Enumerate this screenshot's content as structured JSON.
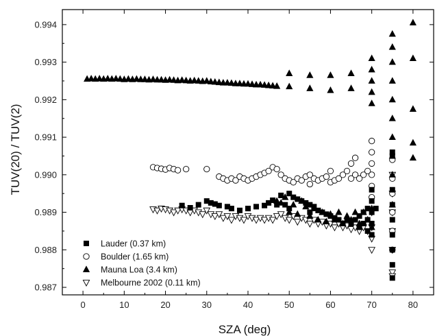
{
  "chart_data": {
    "type": "scatter",
    "title": "",
    "xlabel": "SZA (deg)",
    "ylabel": "TUV(20) / TUV(2)",
    "xlim": [
      -5,
      85
    ],
    "ylim": [
      0.9868,
      0.9944
    ],
    "xticks": [
      0,
      10,
      20,
      30,
      40,
      50,
      60,
      70,
      80
    ],
    "yticks": [
      0.987,
      0.988,
      0.989,
      0.99,
      0.991,
      0.992,
      0.993,
      0.994
    ],
    "ytick_labels": [
      "0.987",
      "0.988",
      "0.989",
      "0.990",
      "0.991",
      "0.992",
      "0.993",
      "0.994"
    ],
    "grid": false,
    "legend_position": "bottom-left",
    "series": [
      {
        "name": "Lauder (0.37 km)",
        "marker": "filled-square",
        "points": [
          [
            24,
            0.98918
          ],
          [
            26,
            0.98912
          ],
          [
            28,
            0.9892
          ],
          [
            30,
            0.9893
          ],
          [
            31,
            0.98925
          ],
          [
            32,
            0.98922
          ],
          [
            33,
            0.98918
          ],
          [
            35,
            0.98915
          ],
          [
            36,
            0.9891
          ],
          [
            38,
            0.98905
          ],
          [
            40,
            0.9891
          ],
          [
            42,
            0.98915
          ],
          [
            44,
            0.98918
          ],
          [
            45,
            0.98925
          ],
          [
            46,
            0.98932
          ],
          [
            47,
            0.9892
          ],
          [
            48,
            0.98945
          ],
          [
            49,
            0.9892
          ],
          [
            50,
            0.9895
          ],
          [
            50,
            0.9891
          ],
          [
            51,
            0.9894
          ],
          [
            52,
            0.98935
          ],
          [
            53,
            0.9893
          ],
          [
            54,
            0.98925
          ],
          [
            55,
            0.9892
          ],
          [
            55,
            0.989
          ],
          [
            56,
            0.98915
          ],
          [
            57,
            0.98905
          ],
          [
            58,
            0.989
          ],
          [
            59,
            0.98895
          ],
          [
            60,
            0.9889
          ],
          [
            61,
            0.98885
          ],
          [
            62,
            0.9888
          ],
          [
            63,
            0.9887
          ],
          [
            64,
            0.9888
          ],
          [
            65,
            0.9887
          ],
          [
            66,
            0.9888
          ],
          [
            67,
            0.9889
          ],
          [
            67,
            0.9886
          ],
          [
            68,
            0.989
          ],
          [
            68,
            0.9887
          ],
          [
            69,
            0.9891
          ],
          [
            69,
            0.9888
          ],
          [
            69,
            0.9885
          ],
          [
            70,
            0.9896
          ],
          [
            70,
            0.9893
          ],
          [
            70,
            0.989
          ],
          [
            70,
            0.9887
          ],
          [
            70,
            0.9884
          ],
          [
            71,
            0.9891
          ],
          [
            75,
            0.9888
          ],
          [
            75,
            0.9884
          ],
          [
            75,
            0.988
          ],
          [
            75,
            0.9876
          ],
          [
            75,
            0.98725
          ],
          [
            75,
            0.9892
          ],
          [
            75,
            0.9896
          ],
          [
            75,
            0.9905
          ],
          [
            75,
            0.9906
          ]
        ]
      },
      {
        "name": "Boulder (1.65 km)",
        "marker": "open-circle",
        "points": [
          [
            17,
            0.9902
          ],
          [
            18,
            0.99018
          ],
          [
            19,
            0.99016
          ],
          [
            20,
            0.99014
          ],
          [
            21,
            0.99018
          ],
          [
            22,
            0.99015
          ],
          [
            23,
            0.99012
          ],
          [
            25,
            0.99015
          ],
          [
            30,
            0.99015
          ],
          [
            33,
            0.98995
          ],
          [
            34,
            0.9899
          ],
          [
            35,
            0.98985
          ],
          [
            36,
            0.9899
          ],
          [
            37,
            0.98985
          ],
          [
            38,
            0.98995
          ],
          [
            39,
            0.9899
          ],
          [
            40,
            0.98985
          ],
          [
            41,
            0.9899
          ],
          [
            42,
            0.98995
          ],
          [
            43,
            0.99
          ],
          [
            44,
            0.99005
          ],
          [
            45,
            0.9901
          ],
          [
            46,
            0.9902
          ],
          [
            47,
            0.99015
          ],
          [
            48,
            0.99
          ],
          [
            49,
            0.9899
          ],
          [
            50,
            0.98985
          ],
          [
            51,
            0.9898
          ],
          [
            52,
            0.9899
          ],
          [
            53,
            0.98985
          ],
          [
            54,
            0.98995
          ],
          [
            55,
            0.99
          ],
          [
            55,
            0.98975
          ],
          [
            56,
            0.9899
          ],
          [
            57,
            0.98985
          ],
          [
            58,
            0.9899
          ],
          [
            59,
            0.98995
          ],
          [
            60,
            0.9901
          ],
          [
            60,
            0.9898
          ],
          [
            61,
            0.98985
          ],
          [
            62,
            0.9899
          ],
          [
            63,
            0.99
          ],
          [
            64,
            0.9901
          ],
          [
            65,
            0.9903
          ],
          [
            65,
            0.9899
          ],
          [
            66,
            0.99045
          ],
          [
            66,
            0.99
          ],
          [
            67,
            0.9899
          ],
          [
            68,
            0.99
          ],
          [
            69,
            0.9901
          ],
          [
            70,
            0.9909
          ],
          [
            70,
            0.9906
          ],
          [
            70,
            0.9903
          ],
          [
            70,
            0.99
          ],
          [
            70,
            0.9897
          ],
          [
            70,
            0.9894
          ],
          [
            75,
            0.9904
          ],
          [
            75,
            0.9899
          ],
          [
            75,
            0.9895
          ],
          [
            75,
            0.989
          ],
          [
            75,
            0.9885
          ],
          [
            75,
            0.988
          ]
        ]
      },
      {
        "name": "Mauna Loa (3.4 km)",
        "marker": "filled-triangle-up",
        "points": [
          [
            1,
            0.99255
          ],
          [
            2,
            0.99256
          ],
          [
            3,
            0.99255
          ],
          [
            4,
            0.99256
          ],
          [
            5,
            0.99255
          ],
          [
            6,
            0.99256
          ],
          [
            7,
            0.99255
          ],
          [
            8,
            0.99256
          ],
          [
            9,
            0.99255
          ],
          [
            10,
            0.99254
          ],
          [
            11,
            0.99255
          ],
          [
            12,
            0.99254
          ],
          [
            13,
            0.99255
          ],
          [
            14,
            0.99254
          ],
          [
            15,
            0.99254
          ],
          [
            16,
            0.99253
          ],
          [
            17,
            0.99254
          ],
          [
            18,
            0.99253
          ],
          [
            19,
            0.99253
          ],
          [
            20,
            0.99252
          ],
          [
            21,
            0.99253
          ],
          [
            22,
            0.99252
          ],
          [
            23,
            0.99251
          ],
          [
            24,
            0.99252
          ],
          [
            25,
            0.99251
          ],
          [
            26,
            0.9925
          ],
          [
            27,
            0.99251
          ],
          [
            28,
            0.9925
          ],
          [
            29,
            0.99249
          ],
          [
            30,
            0.9925
          ],
          [
            31,
            0.99248
          ],
          [
            32,
            0.99247
          ],
          [
            33,
            0.99246
          ],
          [
            34,
            0.99245
          ],
          [
            35,
            0.99245
          ],
          [
            36,
            0.99244
          ],
          [
            37,
            0.99243
          ],
          [
            38,
            0.99243
          ],
          [
            39,
            0.99242
          ],
          [
            40,
            0.99242
          ],
          [
            41,
            0.99241
          ],
          [
            42,
            0.9924
          ],
          [
            43,
            0.9924
          ],
          [
            44,
            0.99239
          ],
          [
            45,
            0.99238
          ],
          [
            46,
            0.99237
          ],
          [
            47,
            0.99236
          ],
          [
            50,
            0.9927
          ],
          [
            50,
            0.99235
          ],
          [
            55,
            0.99265
          ],
          [
            55,
            0.9923
          ],
          [
            60,
            0.99265
          ],
          [
            60,
            0.99225
          ],
          [
            65,
            0.9927
          ],
          [
            65,
            0.9923
          ],
          [
            70,
            0.9931
          ],
          [
            70,
            0.9928
          ],
          [
            70,
            0.9925
          ],
          [
            70,
            0.9922
          ],
          [
            70,
            0.9919
          ],
          [
            75,
            0.99375
          ],
          [
            75,
            0.9934
          ],
          [
            75,
            0.993
          ],
          [
            75,
            0.9925
          ],
          [
            75,
            0.992
          ],
          [
            75,
            0.9915
          ],
          [
            75,
            0.991
          ],
          [
            75,
            0.9905
          ],
          [
            75,
            0.99
          ],
          [
            80,
            0.99405
          ],
          [
            80,
            0.9931
          ],
          [
            80,
            0.99175
          ],
          [
            80,
            0.99085
          ],
          [
            80,
            0.99045
          ],
          [
            47,
            0.9893
          ],
          [
            48,
            0.98925
          ],
          [
            49,
            0.9894
          ],
          [
            50,
            0.989
          ],
          [
            51,
            0.9892
          ],
          [
            52,
            0.98895
          ],
          [
            53,
            0.9893
          ],
          [
            54,
            0.98915
          ],
          [
            55,
            0.9889
          ],
          [
            56,
            0.9891
          ],
          [
            57,
            0.9888
          ],
          [
            58,
            0.989
          ],
          [
            59,
            0.98875
          ],
          [
            60,
            0.98895
          ],
          [
            61,
            0.9888
          ],
          [
            62,
            0.989
          ],
          [
            63,
            0.9887
          ],
          [
            64,
            0.9889
          ],
          [
            65,
            0.9888
          ],
          [
            66,
            0.989
          ],
          [
            67,
            0.9887
          ],
          [
            68,
            0.989
          ],
          [
            69,
            0.9888
          ],
          [
            70,
            0.9891
          ],
          [
            70,
            0.9886
          ],
          [
            75,
            0.9892
          ]
        ]
      },
      {
        "name": "Melbourne 2002 (0.11 km)",
        "marker": "open-triangle-down",
        "points": [
          [
            17,
            0.98908
          ],
          [
            18,
            0.98905
          ],
          [
            19,
            0.9891
          ],
          [
            20,
            0.98908
          ],
          [
            21,
            0.98905
          ],
          [
            22,
            0.989
          ],
          [
            23,
            0.98905
          ],
          [
            24,
            0.98908
          ],
          [
            25,
            0.98905
          ],
          [
            26,
            0.989
          ],
          [
            27,
            0.98905
          ],
          [
            28,
            0.989
          ],
          [
            29,
            0.98895
          ],
          [
            30,
            0.98905
          ],
          [
            31,
            0.98895
          ],
          [
            32,
            0.9889
          ],
          [
            33,
            0.98895
          ],
          [
            34,
            0.98885
          ],
          [
            35,
            0.9889
          ],
          [
            36,
            0.9888
          ],
          [
            37,
            0.9889
          ],
          [
            38,
            0.98885
          ],
          [
            39,
            0.9888
          ],
          [
            40,
            0.9889
          ],
          [
            41,
            0.98885
          ],
          [
            42,
            0.9888
          ],
          [
            43,
            0.98885
          ],
          [
            44,
            0.9888
          ],
          [
            45,
            0.98885
          ],
          [
            46,
            0.9888
          ],
          [
            47,
            0.9889
          ],
          [
            48,
            0.98895
          ],
          [
            49,
            0.98885
          ],
          [
            50,
            0.9888
          ],
          [
            51,
            0.9889
          ],
          [
            52,
            0.98875
          ],
          [
            53,
            0.98885
          ],
          [
            54,
            0.9888
          ],
          [
            55,
            0.9887
          ],
          [
            56,
            0.9888
          ],
          [
            57,
            0.9887
          ],
          [
            58,
            0.98875
          ],
          [
            59,
            0.98865
          ],
          [
            60,
            0.9887
          ],
          [
            61,
            0.9886
          ],
          [
            62,
            0.9887
          ],
          [
            63,
            0.9886
          ],
          [
            64,
            0.98865
          ],
          [
            65,
            0.98855
          ],
          [
            66,
            0.9886
          ],
          [
            67,
            0.9885
          ],
          [
            68,
            0.9886
          ],
          [
            69,
            0.9885
          ],
          [
            70,
            0.989
          ],
          [
            70,
            0.9886
          ],
          [
            70,
            0.9883
          ],
          [
            70,
            0.988
          ],
          [
            75,
            0.9895
          ],
          [
            75,
            0.989
          ],
          [
            75,
            0.9885
          ],
          [
            75,
            0.988
          ],
          [
            75,
            0.9874
          ],
          [
            75,
            0.9873
          ],
          [
            75,
            0.99
          ]
        ]
      }
    ]
  }
}
